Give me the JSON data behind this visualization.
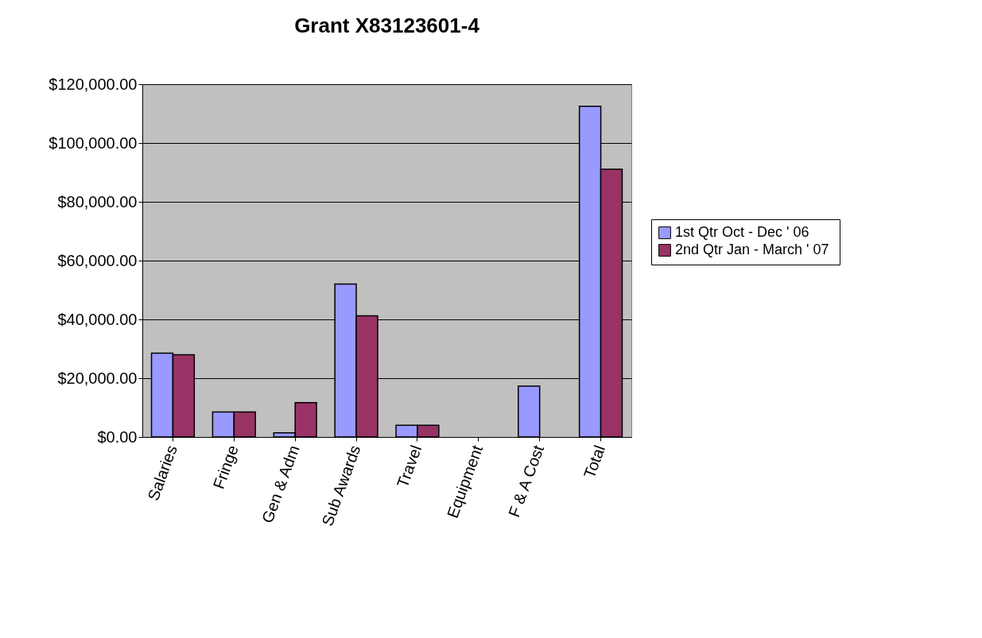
{
  "chart_data": {
    "type": "bar",
    "title": "Grant X83123601-4",
    "categories": [
      "Salaries",
      "Fringe",
      "Gen & Adm",
      "Sub Awards",
      "Travel",
      "Equipment",
      "F & A Cost",
      "Total"
    ],
    "series": [
      {
        "name": "1st Qtr Oct - Dec ' 06",
        "color": "#9999ff",
        "values": [
          28500,
          8500,
          1400,
          52000,
          4000,
          0,
          17300,
          112500
        ]
      },
      {
        "name": "2nd Qtr  Jan - March ' 07",
        "color": "#993366",
        "values": [
          28000,
          8500,
          11700,
          41200,
          4000,
          0,
          0,
          91100
        ]
      }
    ],
    "ylim": [
      0,
      120000
    ],
    "yticks": [
      {
        "value": 0,
        "label": "$0.00"
      },
      {
        "value": 20000,
        "label": "$20,000.00"
      },
      {
        "value": 40000,
        "label": "$40,000.00"
      },
      {
        "value": 60000,
        "label": "$60,000.00"
      },
      {
        "value": 80000,
        "label": "$80,000.00"
      },
      {
        "value": 100000,
        "label": "$100,000.00"
      },
      {
        "value": 120000,
        "label": "$120,000.00"
      }
    ],
    "grid": "y",
    "legend": "right"
  }
}
